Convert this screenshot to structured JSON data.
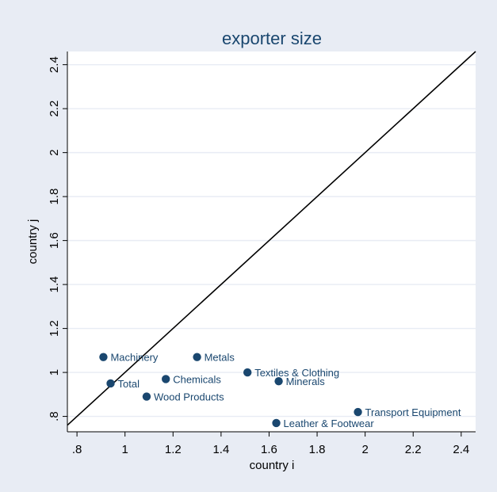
{
  "chart_data": {
    "type": "scatter",
    "title": "exporter size",
    "xlabel": "country i",
    "ylabel": "country j",
    "xlim": [
      0.76,
      2.46
    ],
    "ylim": [
      0.73,
      2.46
    ],
    "x_ticks": [
      {
        "value": 0.8,
        "label": ".8"
      },
      {
        "value": 1.0,
        "label": "1"
      },
      {
        "value": 1.2,
        "label": "1.2"
      },
      {
        "value": 1.4,
        "label": "1.4"
      },
      {
        "value": 1.6,
        "label": "1.6"
      },
      {
        "value": 1.8,
        "label": "1.8"
      },
      {
        "value": 2.0,
        "label": "2"
      },
      {
        "value": 2.2,
        "label": "2.2"
      },
      {
        "value": 2.4,
        "label": "2.4"
      }
    ],
    "y_ticks": [
      {
        "value": 0.8,
        "label": ".8"
      },
      {
        "value": 1.0,
        "label": "1"
      },
      {
        "value": 1.2,
        "label": "1.2"
      },
      {
        "value": 1.4,
        "label": "1.4"
      },
      {
        "value": 1.6,
        "label": "1.6"
      },
      {
        "value": 1.8,
        "label": "1.8"
      },
      {
        "value": 2.0,
        "label": "2"
      },
      {
        "value": 2.2,
        "label": "2.2"
      },
      {
        "value": 2.4,
        "label": "2.4"
      }
    ],
    "grid": true,
    "reference_line": "45-degree line (y = x)",
    "points": [
      {
        "label": "Machinery",
        "x": 0.91,
        "y": 1.07
      },
      {
        "label": "Total",
        "x": 0.94,
        "y": 0.95
      },
      {
        "label": "Wood Products",
        "x": 1.09,
        "y": 0.89
      },
      {
        "label": "Chemicals",
        "x": 1.17,
        "y": 0.97
      },
      {
        "label": "Metals",
        "x": 1.3,
        "y": 1.07
      },
      {
        "label": "Textiles & Clothing",
        "x": 1.51,
        "y": 1.0
      },
      {
        "label": "Minerals",
        "x": 1.64,
        "y": 0.96
      },
      {
        "label": "Leather & Footwear",
        "x": 1.63,
        "y": 0.77
      },
      {
        "label": "Transport Equipment",
        "x": 1.97,
        "y": 0.82
      }
    ],
    "colors": {
      "outer_background": "#e8ecf4",
      "plot_background": "#ffffff",
      "gridline": "#e8ecf4",
      "marker": "#1a476f",
      "title": "#1a476f",
      "reference_line": "#000000"
    }
  }
}
